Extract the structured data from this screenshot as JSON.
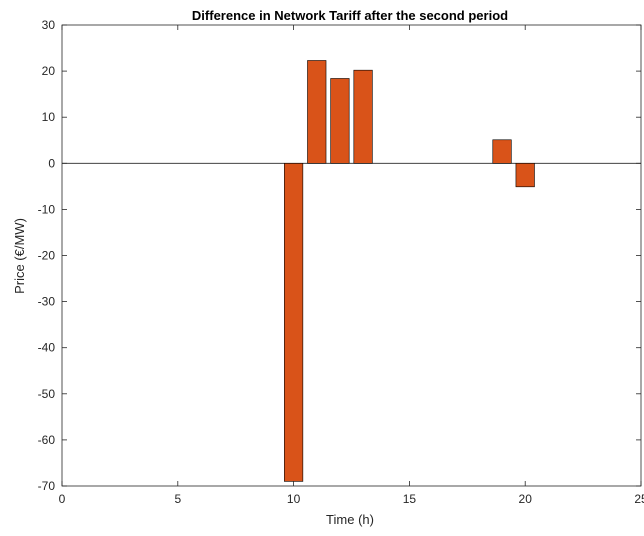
{
  "chart_data": {
    "type": "bar",
    "title": "Difference in Network Tariff after the second period",
    "xlabel": "Time (h)",
    "ylabel": "Price (€/MW)",
    "xlim": [
      0,
      25
    ],
    "ylim": [
      -70,
      30
    ],
    "xticks": [
      0,
      5,
      10,
      15,
      20,
      25
    ],
    "yticks": [
      -70,
      -60,
      -50,
      -40,
      -30,
      -20,
      -10,
      0,
      10,
      20,
      30
    ],
    "bar_color": "#D95319",
    "bar_edge_color": "#000000",
    "grid": false,
    "x": [
      10,
      11,
      12,
      13,
      19,
      20
    ],
    "values": [
      -69,
      22.3,
      18.4,
      20.2,
      5.1,
      -5.1
    ]
  }
}
